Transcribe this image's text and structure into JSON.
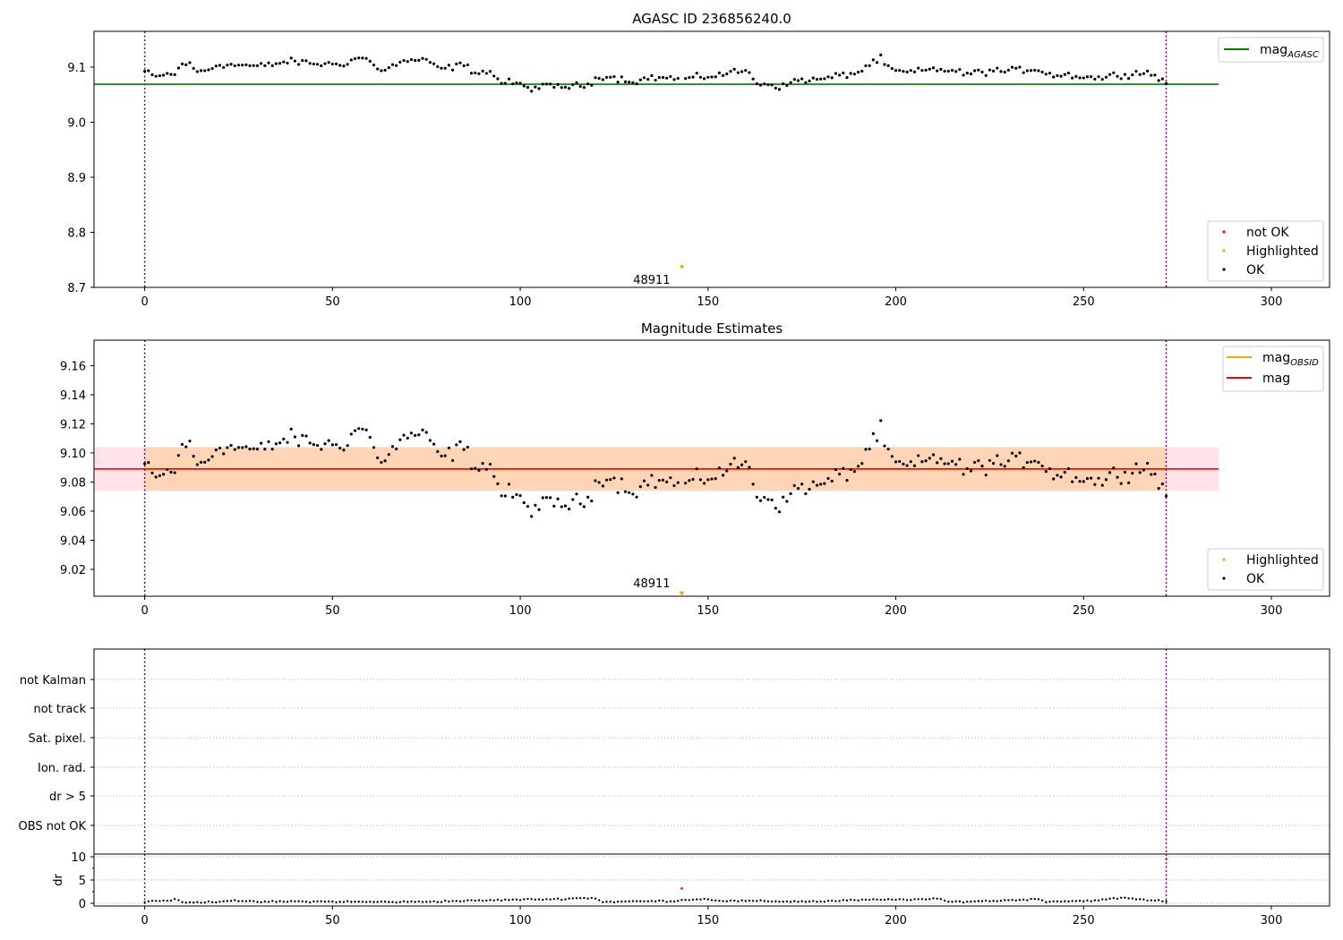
{
  "chart_data": [
    {
      "type": "scatter",
      "title": "AGASC ID 236856240.0",
      "xlim": [
        -13.5,
        315.5
      ],
      "ylim": [
        8.7,
        9.165
      ],
      "xticks": [
        0,
        50,
        100,
        150,
        200,
        250,
        300
      ],
      "yticks": [
        8.7,
        8.8,
        8.9,
        9.0,
        9.1
      ],
      "ytick_labels": [
        "8.7",
        "8.8",
        "8.9",
        "9.0",
        "9.1"
      ],
      "reference_line": {
        "name": "mag",
        "subscript": "AGASC",
        "y": 9.069,
        "x_range": [
          -13.5,
          286
        ],
        "color": "#008000"
      },
      "obs_boundaries": [
        0,
        272
      ],
      "highlighted_point": {
        "x": 143,
        "y": 8.738
      },
      "annotation": {
        "text": "48911",
        "x": 135,
        "y": 8.715
      },
      "legend_lines": [
        {
          "label": "mag",
          "subscript": "AGASC",
          "color": "#008000"
        }
      ],
      "legend_markers": [
        {
          "label": "not OK",
          "color": "#ff0000"
        },
        {
          "label": "Highlighted",
          "color": "#ffa500"
        },
        {
          "label": "OK",
          "color": "#000000"
        }
      ],
      "anchors": [
        [
          0,
          9.092
        ],
        [
          3,
          9.081
        ],
        [
          5,
          9.087
        ],
        [
          8,
          9.086
        ],
        [
          10,
          9.108
        ],
        [
          12,
          9.104
        ],
        [
          14,
          9.091
        ],
        [
          17,
          9.096
        ],
        [
          20,
          9.106
        ],
        [
          23,
          9.103
        ],
        [
          26,
          9.104
        ],
        [
          30,
          9.101
        ],
        [
          34,
          9.105
        ],
        [
          38,
          9.11
        ],
        [
          42,
          9.109
        ],
        [
          46,
          9.106
        ],
        [
          50,
          9.105
        ],
        [
          54,
          9.108
        ],
        [
          57,
          9.118
        ],
        [
          60,
          9.112
        ],
        [
          62,
          9.094
        ],
        [
          66,
          9.102
        ],
        [
          70,
          9.112
        ],
        [
          74,
          9.113
        ],
        [
          77,
          9.103
        ],
        [
          80,
          9.096
        ],
        [
          84,
          9.105
        ],
        [
          88,
          9.092
        ],
        [
          92,
          9.091
        ],
        [
          95,
          9.072
        ],
        [
          98,
          9.072
        ],
        [
          102,
          9.062
        ],
        [
          106,
          9.064
        ],
        [
          110,
          9.065
        ],
        [
          114,
          9.065
        ],
        [
          118,
          9.067
        ],
        [
          121,
          9.085
        ],
        [
          125,
          9.081
        ],
        [
          130,
          9.074
        ],
        [
          135,
          9.081
        ],
        [
          140,
          9.08
        ],
        [
          144,
          9.078
        ],
        [
          148,
          9.082
        ],
        [
          152,
          9.085
        ],
        [
          156,
          9.09
        ],
        [
          160,
          9.094
        ],
        [
          163,
          9.072
        ],
        [
          167,
          9.068
        ],
        [
          170,
          9.064
        ],
        [
          174,
          9.078
        ],
        [
          178,
          9.076
        ],
        [
          182,
          9.08
        ],
        [
          186,
          9.086
        ],
        [
          190,
          9.09
        ],
        [
          194,
          9.11
        ],
        [
          196,
          9.115
        ],
        [
          198,
          9.097
        ],
        [
          202,
          9.09
        ],
        [
          206,
          9.092
        ],
        [
          210,
          9.096
        ],
        [
          214,
          9.095
        ],
        [
          218,
          9.088
        ],
        [
          222,
          9.09
        ],
        [
          226,
          9.094
        ],
        [
          230,
          9.092
        ],
        [
          234,
          9.096
        ],
        [
          238,
          9.096
        ],
        [
          242,
          9.085
        ],
        [
          246,
          9.086
        ],
        [
          250,
          9.083
        ],
        [
          254,
          9.08
        ],
        [
          258,
          9.085
        ],
        [
          262,
          9.088
        ],
        [
          266,
          9.09
        ],
        [
          268,
          9.092
        ],
        [
          270,
          9.077
        ],
        [
          272,
          9.072
        ]
      ]
    },
    {
      "type": "scatter",
      "title": "Magnitude Estimates",
      "xlim": [
        -13.5,
        315.5
      ],
      "ylim": [
        9.0015,
        9.1775
      ],
      "xticks": [
        0,
        50,
        100,
        150,
        200,
        250,
        300
      ],
      "yticks": [
        9.02,
        9.04,
        9.06,
        9.08,
        9.1,
        9.12,
        9.14,
        9.16
      ],
      "ytick_labels": [
        "9.02",
        "9.04",
        "9.06",
        "9.08",
        "9.10",
        "9.12",
        "9.14",
        "9.16"
      ],
      "mag_line": {
        "name": "mag",
        "y": 9.089,
        "x_range": [
          -13.5,
          286
        ],
        "color": "#ff0000"
      },
      "mag_band": {
        "y_low": 9.074,
        "y_high": 9.104,
        "color": "#ffc0cb"
      },
      "obsid_line": {
        "name": "mag",
        "subscript": "OBSID",
        "y": 9.089,
        "x_range": [
          0,
          272
        ],
        "color": "#ffa500"
      },
      "obsid_band": {
        "y_low": 9.074,
        "y_high": 9.104,
        "color": "#ffa500"
      },
      "obs_boundaries": [
        0,
        272
      ],
      "highlighted_point": {
        "x": 143,
        "y": 9.003
      },
      "annotation": {
        "text": "48911",
        "x": 135,
        "y": 9.007
      },
      "legend_lines": [
        {
          "label": "mag",
          "subscript": "OBSID",
          "color": "#ffa500"
        },
        {
          "label": "mag",
          "subscript": "",
          "color": "#ff0000"
        }
      ],
      "legend_markers": [
        {
          "label": "Highlighted",
          "color": "#ffa500"
        },
        {
          "label": "OK",
          "color": "#000000"
        }
      ]
    },
    {
      "type": "scatter",
      "xlim": [
        -13.5,
        315.5
      ],
      "flag_labels": [
        "not Kalman",
        "not track",
        "Sat. pixel.",
        "Ion. rad.",
        "dr > 5",
        "OBS not OK"
      ],
      "obs_boundaries": [
        0,
        272
      ],
      "dr": {
        "ylabel": "dr",
        "ylim": [
          0,
          12
        ],
        "yticks": [
          0,
          5,
          10
        ],
        "ytick_labels": [
          "0",
          "5",
          "10"
        ],
        "red_points": [
          {
            "x": 143,
            "y": 3.2
          },
          {
            "x": 272,
            "y": 9.5
          }
        ],
        "anchors": [
          [
            0,
            0.3
          ],
          [
            2,
            0.5
          ],
          [
            6,
            0.6
          ],
          [
            9,
            0.8
          ],
          [
            10,
            0.1
          ],
          [
            14,
            0.2
          ],
          [
            18,
            0.3
          ],
          [
            22,
            0.5
          ],
          [
            24,
            0.7
          ],
          [
            26,
            0.4
          ],
          [
            30,
            0.3
          ],
          [
            40,
            0.4
          ],
          [
            60,
            0.3
          ],
          [
            70,
            0.3
          ],
          [
            78,
            0.4
          ],
          [
            90,
            0.6
          ],
          [
            100,
            0.8
          ],
          [
            110,
            0.9
          ],
          [
            115,
            1.1
          ],
          [
            120,
            1.1
          ],
          [
            122,
            0.3
          ],
          [
            130,
            0.4
          ],
          [
            140,
            0.5
          ],
          [
            142,
            0.5
          ],
          [
            144,
            0.8
          ],
          [
            150,
            0.9
          ],
          [
            154,
            0.5
          ],
          [
            160,
            0.5
          ],
          [
            170,
            0.4
          ],
          [
            180,
            0.4
          ],
          [
            190,
            0.7
          ],
          [
            200,
            0.8
          ],
          [
            212,
            0.9
          ],
          [
            214,
            0.3
          ],
          [
            225,
            0.5
          ],
          [
            235,
            0.8
          ],
          [
            238,
            0.9
          ],
          [
            240,
            0.4
          ],
          [
            250,
            0.5
          ],
          [
            256,
            0.8
          ],
          [
            260,
            1.2
          ],
          [
            264,
            0.9
          ],
          [
            268,
            0.6
          ],
          [
            272,
            0.5
          ]
        ]
      }
    }
  ]
}
